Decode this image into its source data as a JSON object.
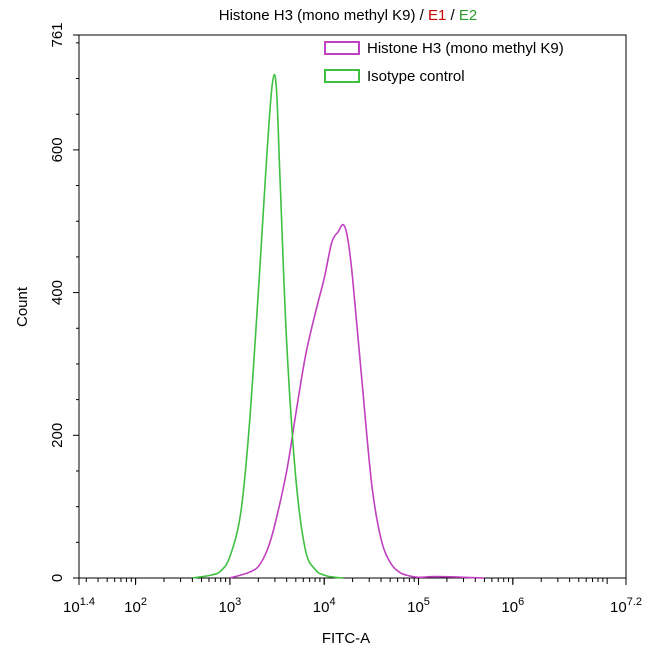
{
  "chart_data": {
    "type": "line",
    "title_parts": [
      {
        "text": "Histone H3 (mono methyl K9)",
        "color": "#000000"
      },
      {
        "text": " / ",
        "color": "#000000"
      },
      {
        "text": "E1",
        "color": "#cc0000"
      },
      {
        "text": " / ",
        "color": "#000000"
      },
      {
        "text": "E2",
        "color": "#2a9a2a"
      }
    ],
    "xlabel": "FITC-A",
    "ylabel": "Count",
    "x_scale": "log10",
    "xlim": [
      25.12,
      15848932
    ],
    "ylim": [
      0,
      761
    ],
    "y_ticks": [
      "0",
      "200",
      "400",
      "600",
      "761"
    ],
    "x_ticks": [
      {
        "base": "10",
        "exp": "1.4",
        "value": 25.12
      },
      {
        "base": "10",
        "exp": "2",
        "value": 100
      },
      {
        "base": "10",
        "exp": "3",
        "value": 1000
      },
      {
        "base": "10",
        "exp": "4",
        "value": 10000
      },
      {
        "base": "10",
        "exp": "5",
        "value": 100000
      },
      {
        "base": "10",
        "exp": "6",
        "value": 1000000
      },
      {
        "base": "10",
        "exp": "7.2",
        "value": 15848932
      }
    ],
    "legend_position": "top-right",
    "series": [
      {
        "name": "Histone H3 (mono methyl K9)",
        "color": "#c040c0",
        "x": [
          1000,
          1300,
          1600,
          2000,
          2500,
          3000,
          4000,
          5000,
          6300,
          8000,
          10000,
          12000,
          14000,
          16000,
          17800,
          20000,
          25000,
          32000,
          40000,
          50000,
          63000,
          80000,
          100000,
          150000,
          300000,
          500000
        ],
        "y": [
          0,
          4,
          8,
          16,
          40,
          75,
          150,
          230,
          310,
          370,
          420,
          470,
          485,
          495,
          475,
          420,
          280,
          130,
          55,
          22,
          8,
          3,
          1,
          2,
          1,
          0
        ]
      },
      {
        "name": "Isotype control",
        "color": "#40c040",
        "x": [
          400,
          630,
          800,
          1000,
          1300,
          1600,
          2000,
          2400,
          2800,
          3100,
          3400,
          4000,
          5000,
          6300,
          8000,
          10000,
          13000,
          16000
        ],
        "y": [
          0,
          4,
          10,
          30,
          90,
          210,
          400,
          570,
          690,
          690,
          560,
          330,
          140,
          40,
          12,
          4,
          1,
          0
        ]
      }
    ]
  }
}
